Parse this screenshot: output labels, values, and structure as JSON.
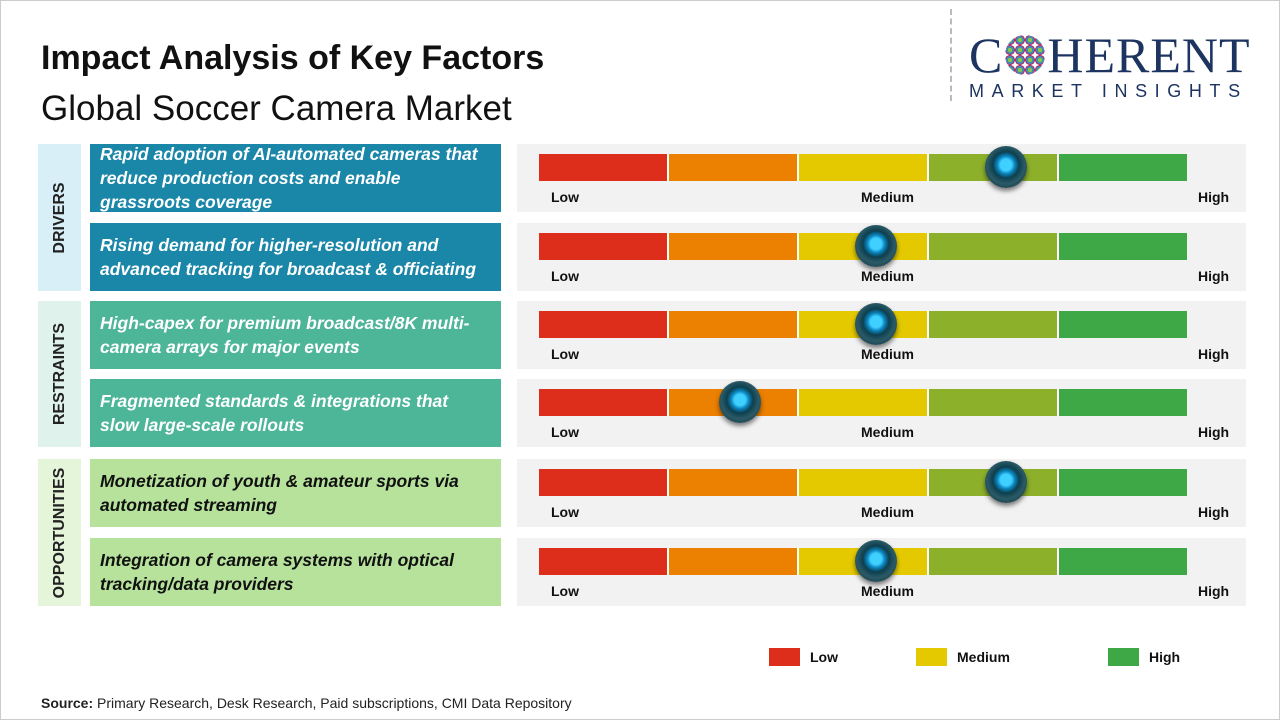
{
  "header": {
    "title": "Impact Analysis of Key Factors",
    "subtitle": "Global Soccer Camera Market"
  },
  "logo": {
    "line1": "COHERENT",
    "line2": "MARKET INSIGHTS"
  },
  "colors": {
    "low": "#dd2e1c",
    "low_med": "#ec8000",
    "medium": "#e4c900",
    "med_high": "#8db02b",
    "high": "#3fa846"
  },
  "chart_data": {
    "type": "gauge",
    "scale_labels": [
      "Low",
      "Medium",
      "High"
    ],
    "scale_range": [
      0,
      1
    ],
    "sections": [
      {
        "name": "DRIVERS",
        "box_color": "#1a86a8",
        "side_color": "#d8eff7",
        "text_color": "#ffffff",
        "factors": [
          {
            "text": "Rapid adoption of AI-automated cameras that reduce production costs and enable grassroots coverage",
            "impact": 0.72
          },
          {
            "text": "Rising demand for higher-resolution and advanced tracking for broadcast & officiating",
            "impact": 0.52
          }
        ]
      },
      {
        "name": "RESTRAINTS",
        "box_color": "#4db598",
        "side_color": "#dff2ec",
        "text_color": "#ffffff",
        "factors": [
          {
            "text": "High-capex for premium broadcast/8K multi-camera arrays for major events",
            "impact": 0.52
          },
          {
            "text": "Fragmented standards & integrations that slow large-scale rollouts",
            "impact": 0.31
          }
        ]
      },
      {
        "name": "OPPORTUNITIES",
        "box_color": "#b6e29c",
        "side_color": "#e4f5d9",
        "text_color": "#111111",
        "factors": [
          {
            "text": "Monetization of youth & amateur sports via automated streaming",
            "impact": 0.72
          },
          {
            "text": "Integration of camera systems with optical tracking/data providers",
            "impact": 0.52
          }
        ]
      }
    ],
    "legend": [
      {
        "label": "Low",
        "color": "#dd2e1c"
      },
      {
        "label": "Medium",
        "color": "#e4c900"
      },
      {
        "label": "High",
        "color": "#3fa846"
      }
    ]
  },
  "footer": {
    "source_label": "Source:",
    "source_text": " Primary Research, Desk Research, Paid subscriptions, CMI Data Repository"
  }
}
